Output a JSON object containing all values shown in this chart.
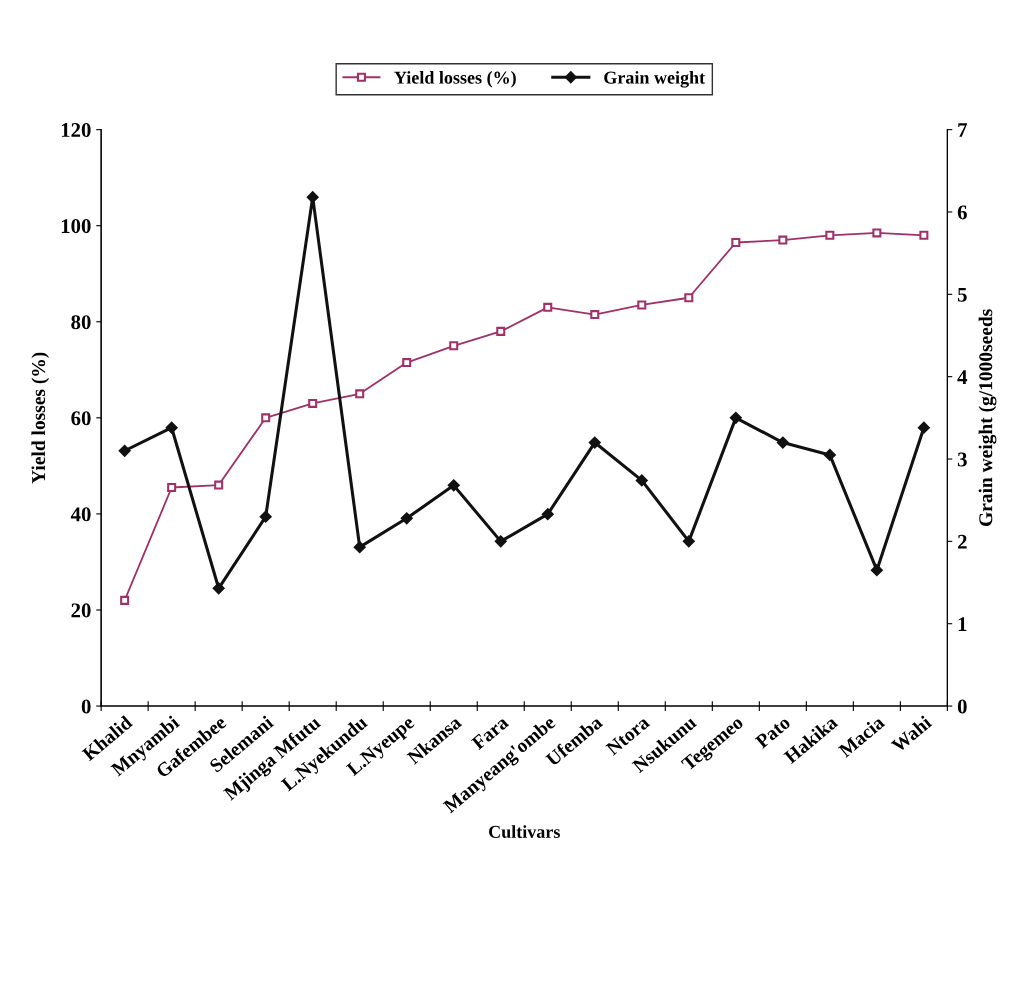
{
  "chart_data": {
    "type": "line",
    "xlabel": "Cultivars",
    "ylabel": "Yield losses (%)",
    "y2label": "Grain weight (g/1000seeds",
    "categories": [
      "Khalid",
      "Mnyambi",
      "Gafembee",
      "Selemani",
      "Mjinga Mfutu",
      "L.Nyekundu",
      "L.Nyeupe",
      "Nkansa",
      "Fara",
      "Manyeang'ombe",
      "Ufemba",
      "Ntora",
      "Nsukunu",
      "Tegemeo",
      "Pato",
      "Hakika",
      "Macia",
      "Wahi"
    ],
    "series": [
      {
        "name": "Yield losses (%)",
        "color": "#a0306a",
        "marker": "square",
        "values": [
          22,
          45.5,
          46,
          60,
          63,
          65,
          71.5,
          75,
          78,
          83,
          81.5,
          83.5,
          85,
          96.5,
          97,
          98,
          98.5,
          98
        ]
      },
      {
        "name": "Grain weight",
        "color": "#111111",
        "marker": "diamond",
        "axis": "y2",
        "values": [
          3.1,
          3.38,
          1.43,
          2.3,
          6.18,
          1.93,
          2.28,
          2.68,
          2.0,
          2.33,
          3.2,
          2.74,
          2.0,
          3.5,
          3.2,
          3.05,
          1.65,
          3.38
        ]
      }
    ],
    "ylim": [
      0,
      120
    ],
    "yticks": [
      0,
      20,
      40,
      60,
      80,
      100,
      120
    ],
    "y2lim": [
      0,
      7
    ],
    "y2ticks": [
      0,
      1,
      2,
      3,
      4,
      5,
      6,
      7
    ],
    "legend": "top",
    "grid": false
  }
}
